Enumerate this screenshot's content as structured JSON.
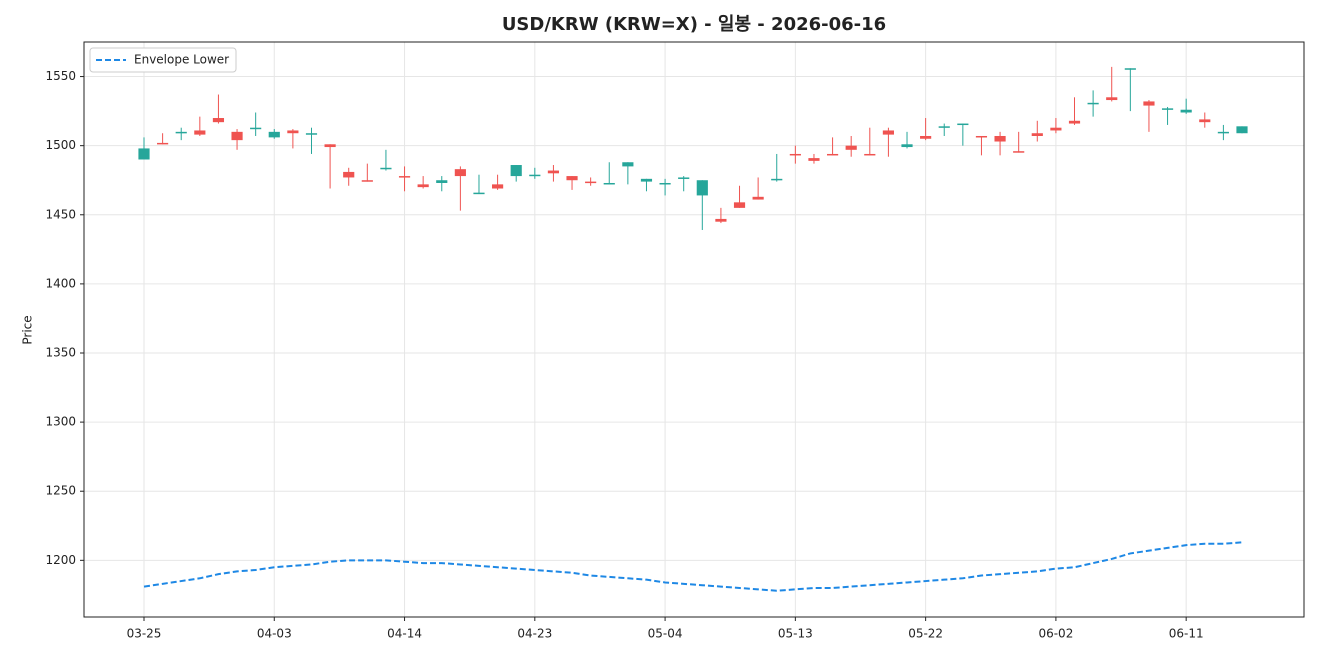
{
  "chart_data": {
    "type": "candlestick",
    "title": "USD/KRW (KRW=X) - 일봉 - 2026-06-16",
    "y_label": "Price",
    "categories": [
      "03-25",
      null,
      null,
      null,
      null,
      null,
      null,
      "04-03",
      null,
      null,
      null,
      null,
      null,
      null,
      "04-14",
      null,
      null,
      null,
      null,
      null,
      null,
      "04-23",
      null,
      null,
      null,
      null,
      null,
      null,
      "05-04",
      null,
      null,
      null,
      null,
      null,
      null,
      "05-13",
      null,
      null,
      null,
      null,
      null,
      null,
      "05-22",
      null,
      null,
      null,
      null,
      null,
      null,
      "06-02",
      null,
      null,
      null,
      null,
      null,
      null,
      "06-11",
      null,
      null,
      null
    ],
    "open": [
      1498,
      1501,
      1510,
      1508,
      1517,
      1504,
      1513,
      1510,
      1509,
      1509,
      1499,
      1477,
      1474,
      1484,
      1477,
      1470,
      1475,
      1478,
      1466,
      1469,
      1486,
      1479,
      1480,
      1475,
      1473,
      1473,
      1488,
      1476,
      1473,
      1477,
      1475,
      1445,
      1455,
      1461,
      1476,
      1493,
      1489,
      1493,
      1497,
      1493,
      1508,
      1501,
      1505,
      1514,
      1516,
      1506,
      1503,
      1495,
      1507,
      1511,
      1516,
      1531,
      1533,
      1556,
      1529,
      1527,
      1526,
      1517,
      1510,
      1514
    ],
    "high": [
      1506,
      1509,
      1513,
      1521,
      1537,
      1512,
      1524,
      1512,
      1512,
      1513,
      1501,
      1484,
      1487,
      1497,
      1485,
      1478,
      1478,
      1485,
      1479,
      1479,
      1486,
      1484,
      1486,
      1478,
      1477,
      1488,
      1488,
      1476,
      1476,
      1478,
      1475,
      1455,
      1471,
      1477,
      1494,
      1500,
      1494,
      1506,
      1507,
      1513,
      1513,
      1510,
      1520,
      1516,
      1516,
      1507,
      1510,
      1510,
      1518,
      1520,
      1535,
      1540,
      1557,
      1556,
      1533,
      1528,
      1534,
      1524,
      1515,
      1514
    ],
    "low": [
      1490,
      1501,
      1504,
      1507,
      1516,
      1497,
      1507,
      1505,
      1498,
      1494,
      1469,
      1471,
      1474,
      1482,
      1467,
      1469,
      1467,
      1453,
      1465,
      1468,
      1474,
      1476,
      1474,
      1468,
      1471,
      1472,
      1472,
      1467,
      1464,
      1467,
      1439,
      1444,
      1455,
      1461,
      1474,
      1487,
      1487,
      1493,
      1492,
      1493,
      1492,
      1498,
      1504,
      1507,
      1500,
      1493,
      1493,
      1495,
      1503,
      1509,
      1515,
      1521,
      1532,
      1525,
      1510,
      1515,
      1523,
      1513,
      1504,
      1509
    ],
    "close": [
      1490,
      1502,
      1509,
      1511,
      1520,
      1510,
      1512,
      1506,
      1511,
      1508,
      1501,
      1481,
      1475,
      1483,
      1478,
      1472,
      1473,
      1483,
      1465,
      1472,
      1478,
      1478,
      1482,
      1478,
      1474,
      1472,
      1485,
      1474,
      1472,
      1476,
      1464,
      1447,
      1459,
      1463,
      1475,
      1494,
      1491,
      1494,
      1500,
      1494,
      1511,
      1499,
      1507,
      1513,
      1515,
      1507,
      1507,
      1496,
      1509,
      1513,
      1518,
      1530,
      1535,
      1555,
      1532,
      1526,
      1524,
      1519,
      1509,
      1509
    ],
    "up_color": "#ef5350",
    "down_color": "#26a69a",
    "series": [
      {
        "name": "Envelope Lower",
        "color": "#1e88e5",
        "style": "dashed",
        "values": [
          1181,
          1183,
          1185,
          1187,
          1190,
          1192,
          1193,
          1195,
          1196,
          1197,
          1199,
          1200,
          1200,
          1200,
          1199,
          1198,
          1198,
          1197,
          1196,
          1195,
          1194,
          1193,
          1192,
          1191,
          1189,
          1188,
          1187,
          1186,
          1184,
          1183,
          1182,
          1181,
          1180,
          1179,
          1178,
          1179,
          1180,
          1180,
          1181,
          1182,
          1183,
          1184,
          1185,
          1186,
          1187,
          1189,
          1190,
          1191,
          1192,
          1194,
          1195,
          1198,
          1201,
          1205,
          1207,
          1209,
          1211,
          1212,
          1212,
          1213
        ]
      }
    ],
    "ylim": [
      1159,
      1575
    ],
    "yticks": [
      1200,
      1250,
      1300,
      1350,
      1400,
      1450,
      1500,
      1550
    ],
    "grid": true,
    "legend": "upper left"
  }
}
